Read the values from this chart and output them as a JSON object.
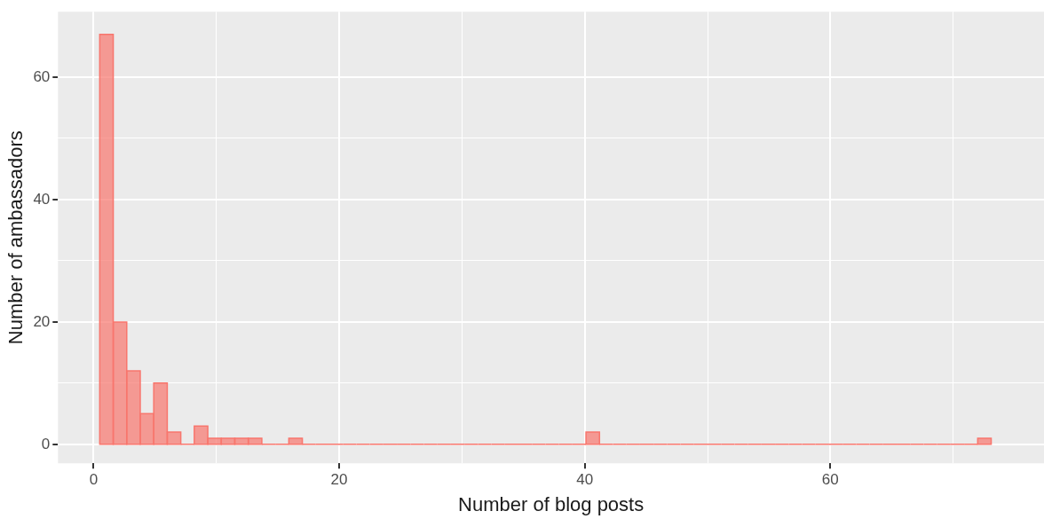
{
  "chart_data": {
    "type": "histogram",
    "xlabel": "Number of blog posts",
    "ylabel": "Number of ambassadors",
    "color": "#f8766d",
    "bins": [
      0.5,
      1.6,
      2.7,
      3.8,
      4.9,
      6,
      7.1,
      8.2,
      9.3,
      10.4,
      11.5,
      12.6,
      13.7,
      14.8,
      15.9,
      17,
      18.1,
      19.2,
      20.3,
      21.4,
      22.5,
      23.6,
      24.7,
      25.8,
      26.9,
      28,
      29.1,
      30.2,
      31.3,
      32.4,
      33.5,
      34.6,
      35.7,
      36.8,
      37.9,
      39,
      40.1,
      41.2,
      42.3,
      43.4,
      44.5,
      45.6,
      46.7,
      47.8,
      48.9,
      50,
      51.1,
      52.2,
      53.3,
      54.4,
      55.5,
      56.6,
      57.7,
      58.8,
      59.9,
      61,
      62.1,
      63.2,
      64.3,
      65.4,
      66.5,
      67.6,
      68.7,
      69.8,
      70.9,
      72,
      73.1
    ],
    "values": [
      67,
      20,
      12,
      5,
      10,
      2,
      0,
      3,
      1,
      1,
      1,
      1,
      0,
      0,
      1,
      0,
      0,
      0,
      0,
      0,
      0,
      0,
      0,
      0,
      0,
      0,
      0,
      0,
      0,
      0,
      0,
      0,
      0,
      0,
      0,
      0,
      2,
      0,
      0,
      0,
      0,
      0,
      0,
      0,
      0,
      0,
      0,
      0,
      0,
      0,
      0,
      0,
      0,
      0,
      0,
      0,
      0,
      0,
      0,
      0,
      0,
      0,
      0,
      0,
      0,
      1
    ],
    "xlim": [
      -2.9,
      77.4
    ],
    "ylim": [
      -3.1,
      70.7
    ],
    "xticks": [
      0,
      {
        "value": 10,
        "label": null
      },
      20,
      {
        "value": 30,
        "label": null
      },
      40,
      {
        "value": 50,
        "label": null
      },
      60,
      {
        "value": 70,
        "label": null
      }
    ],
    "yticks": [
      0,
      {
        "value": 10,
        "label": null
      },
      20,
      {
        "value": 30,
        "label": null
      },
      40,
      {
        "value": 50,
        "label": null
      },
      60
    ],
    "grid": true,
    "legend": false
  }
}
